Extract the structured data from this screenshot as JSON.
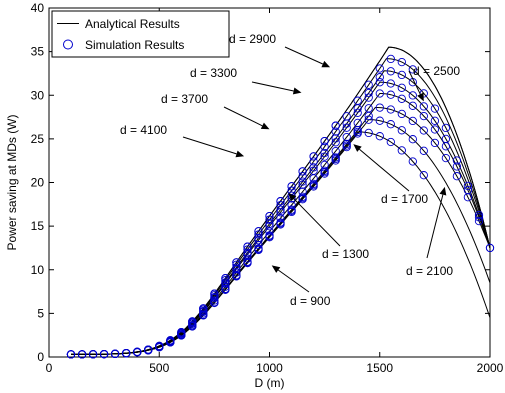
{
  "chart_data": {
    "type": "line",
    "xlabel": "D (m)",
    "ylabel": "Power saving at MDs (W)",
    "xlim": [
      0,
      2000
    ],
    "ylim": [
      0,
      40
    ],
    "x_ticks": [
      "0",
      "500",
      "1000",
      "1500",
      "2000"
    ],
    "y_ticks": [
      "0",
      "5",
      "10",
      "15",
      "20",
      "25",
      "30",
      "35",
      "40"
    ],
    "x_tick_values": [
      0,
      500,
      1000,
      1500,
      2000
    ],
    "y_tick_values": [
      0,
      5,
      10,
      15,
      20,
      25,
      30,
      35,
      40
    ],
    "legend": {
      "position": "top-left",
      "entries": [
        {
          "label": "Analytical Results",
          "marker": "line"
        },
        {
          "label": "Simulation Results",
          "marker": "circle"
        }
      ]
    },
    "grid": false,
    "style": {
      "line_color": "#000000",
      "marker_color": "#0000cc"
    },
    "curve_x_range": [
      100,
      2000
    ],
    "marker_step": 50,
    "curves": [
      {
        "label": "d = 900",
        "peak_x": 1400,
        "peak_y": 25.8,
        "end_x": 2000,
        "end_y": 4.5,
        "marker_end_x": 1700
      },
      {
        "label": "d = 1300",
        "peak_x": 1450,
        "peak_y": 27.2,
        "end_x": 2000,
        "end_y": 8.5,
        "marker_end_x": 1700
      },
      {
        "label": "d = 1700",
        "peak_x": 1480,
        "peak_y": 28.6,
        "end_x": 2000,
        "end_y": 12.5,
        "marker_end_x": 2000
      },
      {
        "label": "d = 2100",
        "peak_x": 1500,
        "peak_y": 30.2,
        "end_x": 2000,
        "end_y": 12.5,
        "marker_end_x": 2000
      },
      {
        "label": "d = 2500",
        "peak_x": 1500,
        "peak_y": 31.5,
        "end_x": 2000,
        "end_y": 12.5,
        "marker_end_x": 1950
      },
      {
        "label": "d = 2900",
        "peak_x": 1520,
        "peak_y": 32.8,
        "end_x": 2000,
        "end_y": 12.5,
        "marker_end_x": 1800
      },
      {
        "label": "d = 3300",
        "peak_x": 1530,
        "peak_y": 34.2,
        "end_x": 2000,
        "end_y": 12.5,
        "marker_end_x": 1650
      },
      {
        "label": "d = 3700",
        "peak_x": 1540,
        "peak_y": 35.5,
        "end_x": 2000,
        "end_y": 12.5,
        "marker_end_x": 1300
      },
      {
        "label": "d = 4100",
        "peak_x": 1540,
        "peak_y": 35.5,
        "end_x": 2000,
        "end_y": 12.5,
        "marker_end_x": 1300
      }
    ],
    "annotations": [
      {
        "text": "d = 2900",
        "tip": [
          1275,
          33.2
        ]
      },
      {
        "text": "d = 3300",
        "tip": [
          1145,
          30.3
        ]
      },
      {
        "text": "d = 3700",
        "tip": [
          1000,
          26.1
        ]
      },
      {
        "text": "d = 4100",
        "tip": [
          885,
          23.0
        ]
      },
      {
        "text": "d = 2500",
        "tip": [
          1700,
          29.3
        ]
      },
      {
        "text": "d = 1700",
        "tip": [
          1380,
          24.4
        ]
      },
      {
        "text": "d = 1300",
        "tip": [
          1085,
          18.8
        ]
      },
      {
        "text": "d = 900",
        "tip": [
          1010,
          10.5
        ]
      },
      {
        "text": "d = 2100",
        "tip": [
          1795,
          19.5
        ]
      }
    ]
  }
}
